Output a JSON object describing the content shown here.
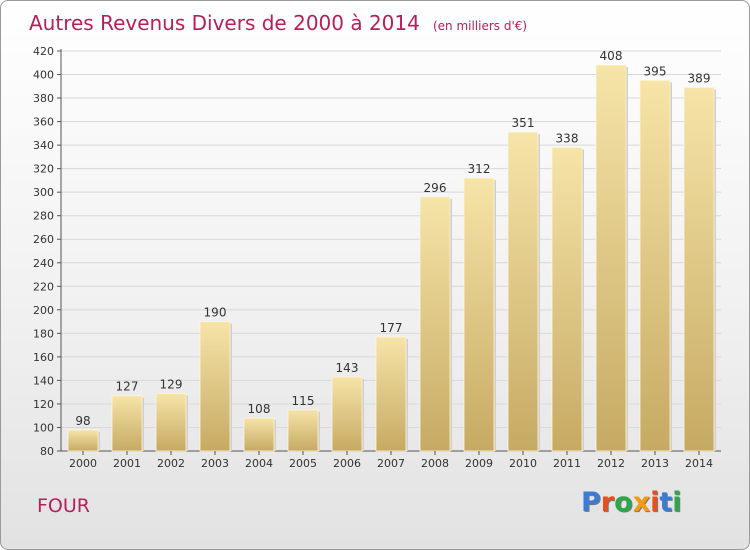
{
  "header": {
    "title": "Autres Revenus Divers de 2000 à 2014",
    "unit": "(en milliers d'€)"
  },
  "footer": {
    "place": "FOUR",
    "logo_text": "Proxiti",
    "logo_colors": [
      "#3a7bd5",
      "#e94e1b",
      "#2ca84a",
      "#f39c12",
      "#e94e1b",
      "#3a7bd5",
      "#2ca84a"
    ]
  },
  "colors": {
    "title": "#b51f5a",
    "bar_light": "#f6e4a8",
    "bar_dark": "#c6aa63",
    "grid": "#d8d8d8"
  },
  "chart_data": {
    "type": "bar",
    "categories": [
      "2000",
      "2001",
      "2002",
      "2003",
      "2004",
      "2005",
      "2006",
      "2007",
      "2008",
      "2009",
      "2010",
      "2011",
      "2012",
      "2013",
      "2014"
    ],
    "values": [
      98,
      127,
      129,
      190,
      108,
      115,
      143,
      177,
      296,
      312,
      351,
      338,
      408,
      395,
      389
    ],
    "title": "Autres Revenus Divers de 2000 à 2014",
    "ylim": [
      80,
      420
    ],
    "yticks": [
      80,
      100,
      120,
      140,
      160,
      180,
      200,
      220,
      240,
      260,
      280,
      300,
      320,
      340,
      360,
      380,
      400,
      420
    ],
    "grid": true
  }
}
